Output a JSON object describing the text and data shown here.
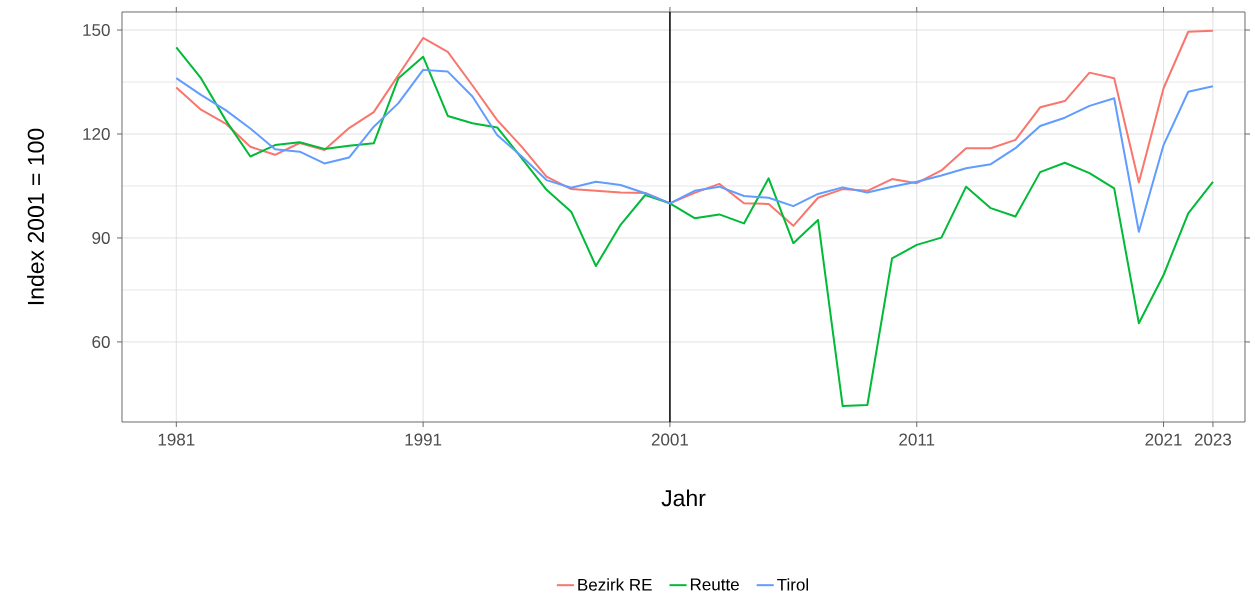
{
  "chart_data": {
    "type": "line",
    "xlabel": "Jahr",
    "ylabel": "Index 2001 = 100",
    "x": [
      1981,
      1982,
      1983,
      1984,
      1985,
      1986,
      1987,
      1988,
      1989,
      1990,
      1991,
      1992,
      1993,
      1994,
      1995,
      1996,
      1997,
      1998,
      1999,
      2000,
      2001,
      2002,
      2003,
      2004,
      2005,
      2006,
      2007,
      2008,
      2009,
      2010,
      2011,
      2012,
      2013,
      2014,
      2015,
      2016,
      2017,
      2018,
      2019,
      2020,
      2021,
      2022,
      2023
    ],
    "series": [
      {
        "name": "Bezirk RE",
        "color": "#f8766d",
        "values": [
          133.4,
          127,
          123,
          116.3,
          114,
          117.4,
          115.4,
          121.7,
          126.3,
          137,
          147.7,
          143.7,
          134,
          124,
          116.3,
          107.7,
          104.1,
          103.6,
          103.1,
          103,
          100,
          103,
          105.6,
          100,
          99.8,
          93.5,
          101.6,
          104.1,
          103.6,
          107,
          105.8,
          109.5,
          115.9,
          115.9,
          118.3,
          127.7,
          129.5,
          137.7,
          136.1,
          106,
          133.2,
          149.5,
          149.8
        ]
      },
      {
        "name": "Reutte",
        "color": "#00ba38",
        "values": [
          145,
          136.1,
          124,
          113.5,
          116.8,
          117.6,
          115.7,
          116.6,
          117.3,
          136.1,
          142.3,
          125.2,
          123.1,
          121.9,
          113,
          103.9,
          97.6,
          81.9,
          93.8,
          102.4,
          100,
          95.7,
          96.8,
          94.2,
          107.2,
          88.5,
          95.2,
          41.5,
          41.8,
          84.1,
          88,
          90.1,
          104.8,
          98.6,
          96.2,
          109,
          111.7,
          108.7,
          104.3,
          65.4,
          79.3,
          97.1,
          106.2
        ]
      },
      {
        "name": "Tirol",
        "color": "#619cff",
        "values": [
          136.1,
          131.3,
          126.9,
          121.6,
          115.6,
          114.9,
          111.5,
          113.2,
          122.1,
          128.9,
          138.5,
          138,
          130.8,
          119.7,
          113.5,
          106.7,
          104.5,
          106.2,
          105.3,
          102.9,
          100,
          103.6,
          104.8,
          102.1,
          101.6,
          99.2,
          102.7,
          104.6,
          103.1,
          104.8,
          106.2,
          108,
          110.1,
          111.3,
          115.9,
          122.3,
          124.7,
          128.1,
          130.3,
          91.8,
          116.8,
          132.2,
          133.8
        ]
      }
    ],
    "xlim": [
      1978.8,
      2024.3
    ],
    "ylim": [
      36.9,
      155.2
    ],
    "xticks": [
      1981,
      1991,
      2001,
      2011,
      2021,
      2023
    ],
    "yticks": [
      60,
      90,
      120,
      150
    ],
    "ref_lines": [
      {
        "axis": "x",
        "value": 2001,
        "color": "#000000"
      }
    ],
    "grid": true,
    "legend": "bottom",
    "line_style": "solid"
  }
}
